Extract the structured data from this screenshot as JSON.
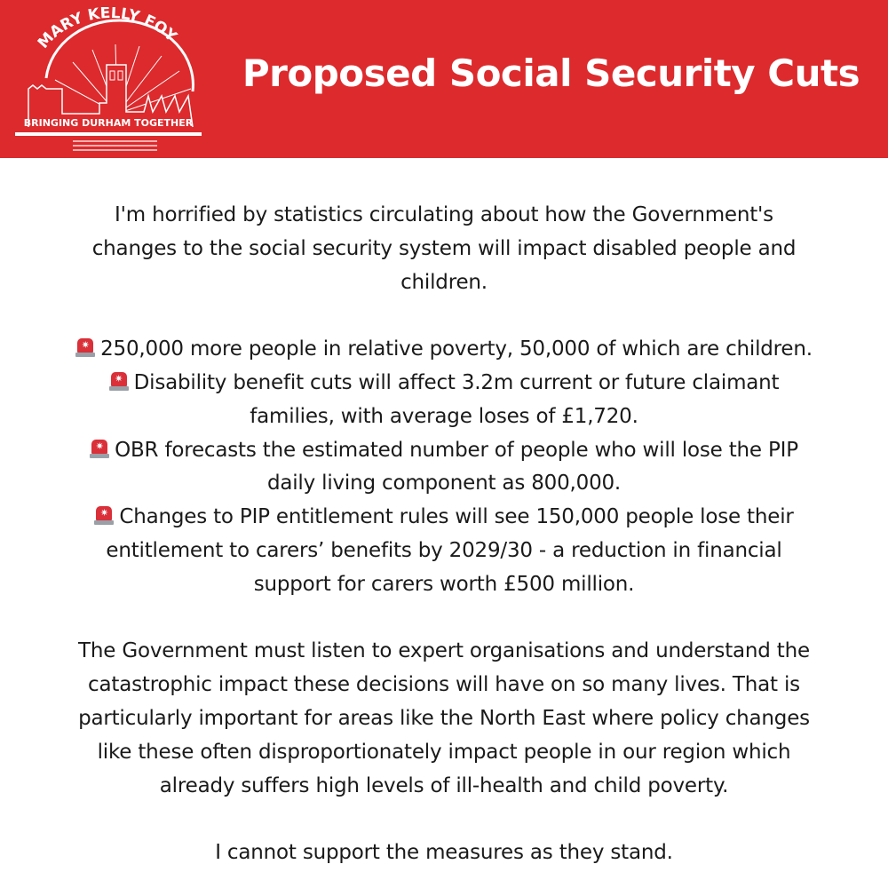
{
  "header": {
    "title": "Proposed Social Security Cuts",
    "color": "#dc2a2d",
    "logo": {
      "name": "MARY KELLY FOY",
      "tagline": "BRINGING DURHAM TOGETHER"
    }
  },
  "intro": [
    "I'm horrified by statistics circulating about how the Government's",
    "changes to the social security system will impact disabled people and",
    "children."
  ],
  "bullet_icon": "police-car-light-icon",
  "bullets": [
    [
      "250,000 more people in relative poverty, 50,000 of which are children."
    ],
    [
      "Disability benefit cuts will affect 3.2m current or future claimant",
      "families, with average loses of £1,720."
    ],
    [
      "OBR forecasts the estimated number of people who will lose the PIP",
      "daily living component as 800,000."
    ],
    [
      "Changes to PIP entitlement rules will see 150,000 people lose their",
      "entitlement to carers’ benefits by 2029/30 - a reduction in financial",
      "support for carers worth £500 million."
    ]
  ],
  "paragraph": [
    "The Government must listen to expert organisations and understand the",
    "catastrophic impact these decisions will have on so many lives. That is",
    "particularly important for areas like the North East where policy changes",
    "like these often disproportionately impact people in our region which",
    "already suffers high levels of ill-health and child poverty."
  ],
  "closing": "I cannot support the measures as they stand."
}
